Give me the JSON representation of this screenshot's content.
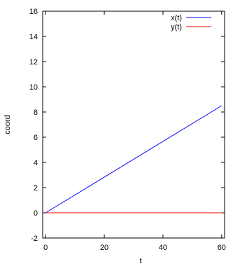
{
  "chart_data": {
    "type": "line",
    "xlabel": "t",
    "ylabel": "coord",
    "xlim": [
      -1,
      61
    ],
    "ylim": [
      -2,
      16
    ],
    "xticks": [
      0,
      20,
      40,
      60
    ],
    "yticks": [
      -2,
      0,
      2,
      4,
      6,
      8,
      10,
      12,
      14,
      16
    ],
    "grid": false,
    "legend_position": "top-right",
    "series": [
      {
        "name": "x(t)",
        "color": "#0000ff",
        "x": [
          0,
          60
        ],
        "y": [
          0,
          8.5
        ]
      },
      {
        "name": "y(t)",
        "color": "#ff0000",
        "x": [
          0,
          60
        ],
        "y": [
          0,
          0
        ]
      }
    ]
  }
}
